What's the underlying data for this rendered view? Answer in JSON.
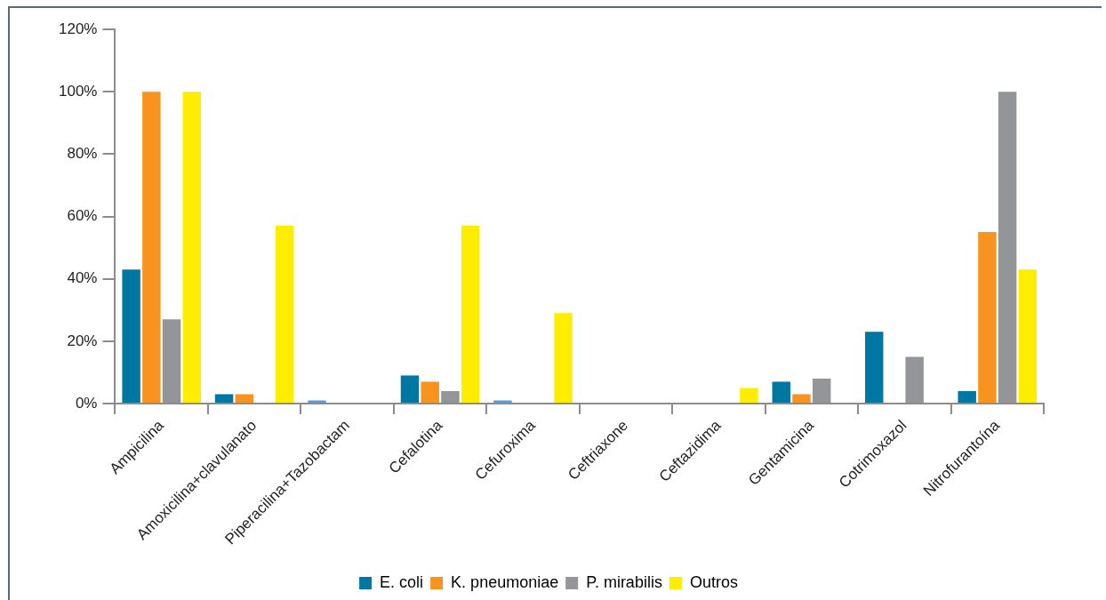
{
  "chart_data": {
    "type": "bar",
    "categories": [
      "Ampicilina",
      "Amoxicilina+clavulanato",
      "Piperacilina+Tazobactam",
      "Cefalotina",
      "Cefuroxima",
      "Ceftriaxone",
      "Ceftazidima",
      "Gentamicina",
      "Cotrimoxazol",
      "Nitrofurantoína"
    ],
    "series": [
      {
        "name": "E. coli",
        "color": "#0077a3",
        "colors": [
          "#0077a3",
          "#0077a3",
          "#5b9bd5",
          "#0077a3",
          "#5b9bd5",
          "#0077a3",
          "#0077a3",
          "#0077a3",
          "#0077a3",
          "#0077a3"
        ],
        "values": [
          43,
          3,
          1,
          9,
          1,
          0,
          0,
          7,
          23,
          4
        ]
      },
      {
        "name": "K. pneumoniae",
        "color": "#f7931e",
        "values": [
          100,
          3,
          0,
          7,
          0,
          0,
          0,
          3,
          0,
          55
        ]
      },
      {
        "name": "P. mirabilis",
        "color": "#939598",
        "values": [
          27,
          0,
          0,
          4,
          0,
          0,
          0,
          8,
          15,
          100
        ]
      },
      {
        "name": "Outros",
        "color": "#ffed00",
        "values": [
          100,
          57,
          0,
          57,
          29,
          0,
          5,
          0,
          0,
          43
        ]
      }
    ],
    "ylim": [
      0,
      120
    ],
    "yticks": [
      {
        "value": 0,
        "label": "0%"
      },
      {
        "value": 20,
        "label": "20%"
      },
      {
        "value": 40,
        "label": "40%"
      },
      {
        "value": 60,
        "label": "60%"
      },
      {
        "value": 80,
        "label": "80%"
      },
      {
        "value": 100,
        "label": "100%"
      },
      {
        "value": 120,
        "label": "120%"
      }
    ],
    "grid": false,
    "legend": "bottom"
  }
}
